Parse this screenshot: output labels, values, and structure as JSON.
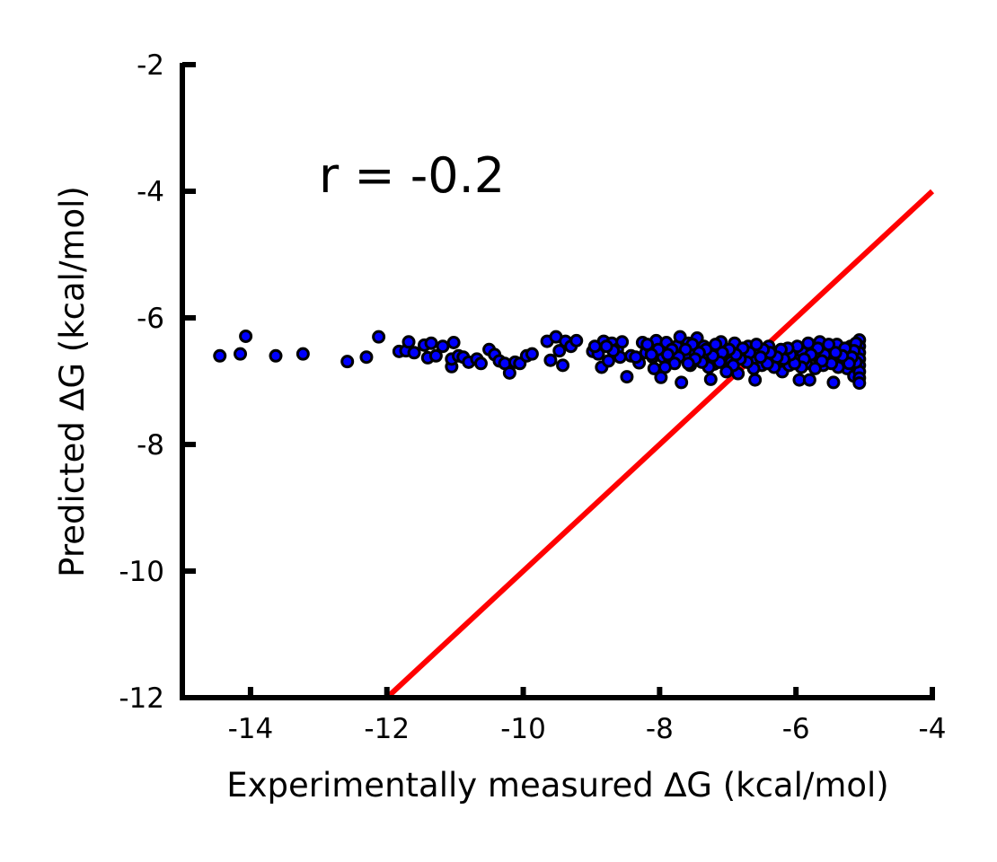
{
  "chart_data": {
    "type": "scatter",
    "title": "",
    "xlabel": "Experimentally measured ∆G (kcal/mol)",
    "ylabel": "Predicted ∆G (kcal/mol)",
    "xlim": [
      -15,
      -4
    ],
    "ylim": [
      -12,
      -2
    ],
    "xticks": [
      -14,
      -12,
      -10,
      -8,
      -6,
      -4
    ],
    "yticks": [
      -12,
      -10,
      -8,
      -6,
      -4,
      -2
    ],
    "xtick_labels": [
      "-14",
      "-12",
      "-10",
      "-8",
      "-6",
      "-4"
    ],
    "ytick_labels": [
      "-12",
      "-10",
      "-8",
      "-6",
      "-4",
      "-2"
    ],
    "grid": false,
    "annotation": "r = -0.2",
    "point_color": "#0000ff",
    "point_edge_color": "#000000",
    "line_color": "#ff0000",
    "reference_line": {
      "x": [
        -12,
        -4
      ],
      "y": [
        -12,
        -4
      ]
    },
    "points": [
      [
        -14.45,
        -6.6
      ],
      [
        -14.15,
        -6.57
      ],
      [
        -14.07,
        -6.29
      ],
      [
        -13.63,
        -6.6
      ],
      [
        -13.23,
        -6.57
      ],
      [
        -12.58,
        -6.69
      ],
      [
        -12.3,
        -6.62
      ],
      [
        -12.12,
        -6.3
      ],
      [
        -11.82,
        -6.53
      ],
      [
        -11.72,
        -6.52
      ],
      [
        -11.68,
        -6.38
      ],
      [
        -11.6,
        -6.55
      ],
      [
        -11.45,
        -6.43
      ],
      [
        -11.4,
        -6.63
      ],
      [
        -11.35,
        -6.4
      ],
      [
        -11.28,
        -6.6
      ],
      [
        -11.18,
        -6.45
      ],
      [
        -11.05,
        -6.77
      ],
      [
        -11.05,
        -6.65
      ],
      [
        -11.02,
        -6.39
      ],
      [
        -10.95,
        -6.6
      ],
      [
        -10.88,
        -6.62
      ],
      [
        -10.8,
        -6.7
      ],
      [
        -10.68,
        -6.65
      ],
      [
        -10.62,
        -6.72
      ],
      [
        -10.5,
        -6.5
      ],
      [
        -10.42,
        -6.58
      ],
      [
        -10.35,
        -6.68
      ],
      [
        -10.27,
        -6.72
      ],
      [
        -10.2,
        -6.87
      ],
      [
        -10.12,
        -6.7
      ],
      [
        -10.05,
        -6.72
      ],
      [
        -9.95,
        -6.6
      ],
      [
        -9.87,
        -6.57
      ],
      [
        -9.65,
        -6.37
      ],
      [
        -9.6,
        -6.67
      ],
      [
        -9.52,
        -6.3
      ],
      [
        -9.47,
        -6.52
      ],
      [
        -9.42,
        -6.75
      ],
      [
        -9.38,
        -6.37
      ],
      [
        -9.3,
        -6.45
      ],
      [
        -9.22,
        -6.36
      ],
      [
        -8.98,
        -6.53
      ],
      [
        -8.9,
        -6.57
      ],
      [
        -8.85,
        -6.78
      ],
      [
        -8.82,
        -6.37
      ],
      [
        -8.75,
        -6.68
      ],
      [
        -8.7,
        -6.4
      ],
      [
        -8.62,
        -6.5
      ],
      [
        -8.55,
        -6.38
      ],
      [
        -8.48,
        -6.93
      ],
      [
        -8.42,
        -6.6
      ],
      [
        -8.3,
        -6.71
      ],
      [
        -8.25,
        -6.39
      ],
      [
        -8.2,
        -6.55
      ],
      [
        -8.15,
        -6.45
      ],
      [
        -8.1,
        -6.62
      ],
      [
        -8.05,
        -6.36
      ],
      [
        -7.98,
        -6.94
      ],
      [
        -7.95,
        -6.62
      ],
      [
        -7.9,
        -6.39
      ],
      [
        -7.85,
        -6.7
      ],
      [
        -7.8,
        -6.55
      ],
      [
        -7.75,
        -6.45
      ],
      [
        -7.7,
        -6.3
      ],
      [
        -7.68,
        -7.02
      ],
      [
        -7.62,
        -6.6
      ],
      [
        -7.58,
        -6.4
      ],
      [
        -7.55,
        -6.75
      ],
      [
        -7.5,
        -6.52
      ],
      [
        -7.45,
        -6.32
      ],
      [
        -7.4,
        -6.68
      ],
      [
        -7.35,
        -6.45
      ],
      [
        -7.3,
        -6.58
      ],
      [
        -7.25,
        -6.97
      ],
      [
        -7.2,
        -6.73
      ],
      [
        -7.15,
        -6.5
      ],
      [
        -7.1,
        -6.38
      ],
      [
        -7.05,
        -6.65
      ],
      [
        -6.95,
        -6.7
      ],
      [
        -6.9,
        -6.4
      ],
      [
        -6.85,
        -6.88
      ],
      [
        -6.8,
        -6.55
      ],
      [
        -6.75,
        -6.62
      ],
      [
        -6.7,
        -6.45
      ],
      [
        -6.65,
        -6.68
      ],
      [
        -6.6,
        -6.98
      ],
      [
        -6.55,
        -6.52
      ],
      [
        -6.5,
        -6.75
      ],
      [
        -6.45,
        -6.6
      ],
      [
        -6.4,
        -6.45
      ],
      [
        -6.35,
        -6.68
      ],
      [
        -6.3,
        -6.55
      ],
      [
        -6.25,
        -6.7
      ],
      [
        -6.2,
        -6.85
      ],
      [
        -6.15,
        -6.6
      ],
      [
        -6.1,
        -6.75
      ],
      [
        -6.05,
        -6.5
      ],
      [
        -6.0,
        -6.65
      ],
      [
        -5.95,
        -6.98
      ],
      [
        -5.9,
        -6.55
      ],
      [
        -5.85,
        -6.72
      ],
      [
        -5.8,
        -6.98
      ],
      [
        -5.75,
        -6.45
      ],
      [
        -5.7,
        -6.6
      ],
      [
        -5.65,
        -6.38
      ],
      [
        -5.6,
        -6.75
      ],
      [
        -5.55,
        -6.5
      ],
      [
        -5.5,
        -6.62
      ],
      [
        -5.45,
        -7.02
      ],
      [
        -5.4,
        -6.42
      ],
      [
        -5.35,
        -6.68
      ],
      [
        -5.3,
        -6.55
      ],
      [
        -5.25,
        -6.8
      ],
      [
        -5.2,
        -6.45
      ],
      [
        -5.15,
        -6.92
      ],
      [
        -5.1,
        -6.6
      ],
      [
        -5.07,
        -6.35
      ],
      [
        -5.07,
        -6.45
      ],
      [
        -5.07,
        -6.55
      ],
      [
        -5.07,
        -6.65
      ],
      [
        -5.07,
        -6.75
      ],
      [
        -5.07,
        -6.85
      ],
      [
        -5.07,
        -6.95
      ],
      [
        -5.07,
        -7.03
      ],
      [
        -5.12,
        -6.4
      ],
      [
        -5.12,
        -6.7
      ],
      [
        -5.15,
        -6.52
      ],
      [
        -5.18,
        -6.62
      ],
      [
        -5.22,
        -6.72
      ],
      [
        -5.28,
        -6.48
      ],
      [
        -5.32,
        -6.6
      ],
      [
        -5.38,
        -6.78
      ],
      [
        -5.42,
        -6.55
      ],
      [
        -5.48,
        -6.72
      ],
      [
        -5.52,
        -6.42
      ],
      [
        -5.58,
        -6.58
      ],
      [
        -5.62,
        -6.68
      ],
      [
        -5.68,
        -6.48
      ],
      [
        -5.72,
        -6.8
      ],
      [
        -5.78,
        -6.58
      ],
      [
        -5.82,
        -6.4
      ],
      [
        -5.88,
        -6.65
      ],
      [
        -5.92,
        -6.78
      ],
      [
        -5.98,
        -6.45
      ],
      [
        -6.02,
        -6.72
      ],
      [
        -6.08,
        -6.58
      ],
      [
        -6.12,
        -6.48
      ],
      [
        -6.18,
        -6.65
      ],
      [
        -6.22,
        -6.5
      ],
      [
        -6.28,
        -6.62
      ],
      [
        -6.32,
        -6.78
      ],
      [
        -6.38,
        -6.55
      ],
      [
        -6.42,
        -6.72
      ],
      [
        -6.48,
        -6.5
      ],
      [
        -6.52,
        -6.62
      ],
      [
        -6.58,
        -6.42
      ],
      [
        -6.62,
        -6.8
      ],
      [
        -6.68,
        -6.55
      ],
      [
        -6.72,
        -6.7
      ],
      [
        -6.78,
        -6.48
      ],
      [
        -6.82,
        -6.65
      ],
      [
        -6.88,
        -6.58
      ],
      [
        -6.92,
        -6.75
      ],
      [
        -6.98,
        -6.5
      ],
      [
        -7.02,
        -6.85
      ],
      [
        -7.08,
        -6.55
      ],
      [
        -7.12,
        -6.7
      ],
      [
        -7.18,
        -6.42
      ],
      [
        -7.22,
        -6.6
      ],
      [
        -7.28,
        -6.78
      ],
      [
        -7.32,
        -6.5
      ],
      [
        -7.38,
        -6.7
      ],
      [
        -7.42,
        -6.55
      ],
      [
        -7.48,
        -6.65
      ],
      [
        -7.52,
        -6.42
      ],
      [
        -7.58,
        -6.72
      ],
      [
        -7.62,
        -6.5
      ],
      [
        -7.72,
        -6.62
      ],
      [
        -7.78,
        -6.72
      ],
      [
        -7.82,
        -6.5
      ],
      [
        -7.88,
        -6.58
      ],
      [
        -7.92,
        -6.78
      ],
      [
        -8.02,
        -6.5
      ],
      [
        -8.08,
        -6.8
      ],
      [
        -8.12,
        -6.58
      ],
      [
        -8.18,
        -6.42
      ],
      [
        -8.35,
        -6.62
      ],
      [
        -8.58,
        -6.62
      ],
      [
        -8.68,
        -6.52
      ],
      [
        -8.78,
        -6.45
      ],
      [
        -8.95,
        -6.45
      ]
    ]
  }
}
